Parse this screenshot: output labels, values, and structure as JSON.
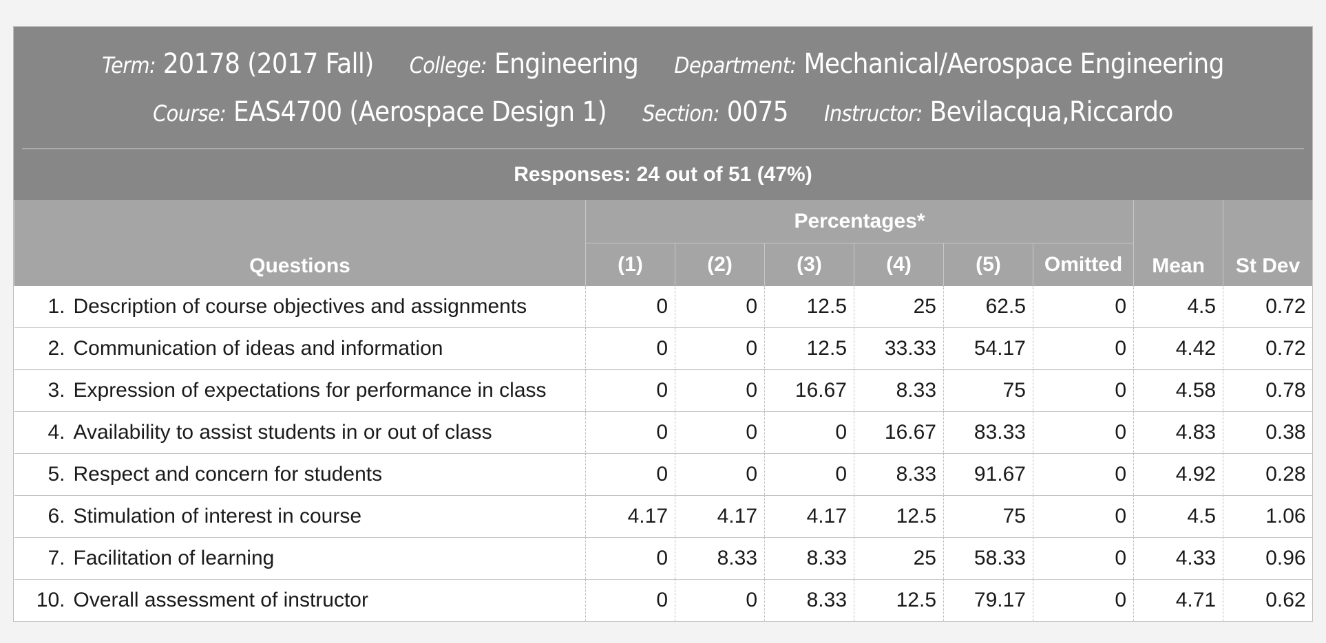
{
  "header": {
    "term_label": "Term:",
    "term_value": "20178 (2017 Fall)",
    "college_label": "College:",
    "college_value": "Engineering",
    "department_label": "Department:",
    "department_value": "Mechanical/Aerospace Engineering",
    "course_label": "Course:",
    "course_value": "EAS4700 (Aerospace Design 1)",
    "section_label": "Section:",
    "section_value": "0075",
    "instructor_label": "Instructor:",
    "instructor_value": "Bevilacqua,Riccardo",
    "responses": "Responses: 24 out of 51 (47%)"
  },
  "table": {
    "questions_header": "Questions",
    "percentages_header": "Percentages*",
    "columns": [
      "(1)",
      "(2)",
      "(3)",
      "(4)",
      "(5)",
      "Omitted"
    ],
    "mean_header": "Mean",
    "stdev_header": "St Dev",
    "rows": [
      {
        "num": "1.",
        "question": "Description of course objectives and assignments",
        "values": [
          "0",
          "0",
          "12.5",
          "25",
          "62.5",
          "0"
        ],
        "mean": "4.5",
        "stdev": "0.72"
      },
      {
        "num": "2.",
        "question": "Communication of ideas and information",
        "values": [
          "0",
          "0",
          "12.5",
          "33.33",
          "54.17",
          "0"
        ],
        "mean": "4.42",
        "stdev": "0.72"
      },
      {
        "num": "3.",
        "question": "Expression of expectations for performance in class",
        "values": [
          "0",
          "0",
          "16.67",
          "8.33",
          "75",
          "0"
        ],
        "mean": "4.58",
        "stdev": "0.78"
      },
      {
        "num": "4.",
        "question": "Availability to assist students in or out of class",
        "values": [
          "0",
          "0",
          "0",
          "16.67",
          "83.33",
          "0"
        ],
        "mean": "4.83",
        "stdev": "0.38"
      },
      {
        "num": "5.",
        "question": "Respect and concern for students",
        "values": [
          "0",
          "0",
          "0",
          "8.33",
          "91.67",
          "0"
        ],
        "mean": "4.92",
        "stdev": "0.28"
      },
      {
        "num": "6.",
        "question": "Stimulation of interest in course",
        "values": [
          "4.17",
          "4.17",
          "4.17",
          "12.5",
          "75",
          "0"
        ],
        "mean": "4.5",
        "stdev": "1.06"
      },
      {
        "num": "7.",
        "question": "Facilitation of learning",
        "values": [
          "0",
          "8.33",
          "8.33",
          "25",
          "58.33",
          "0"
        ],
        "mean": "4.33",
        "stdev": "0.96"
      },
      {
        "num": "10.",
        "question": "Overall assessment of instructor",
        "values": [
          "0",
          "0",
          "8.33",
          "12.5",
          "79.17",
          "0"
        ],
        "mean": "4.71",
        "stdev": "0.62"
      }
    ]
  },
  "colors": {
    "header_bg": "#878787",
    "column_header_bg": "#a5a5a5",
    "page_bg": "#f3f3f3"
  }
}
